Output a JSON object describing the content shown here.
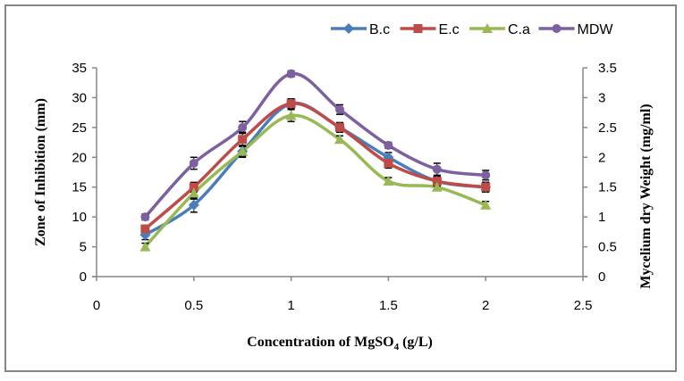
{
  "chart_data": {
    "type": "line",
    "title": "",
    "xlabel": "Concentration of MgSO",
    "xlabel_subscript": "4",
    "xlabel_suffix": " (g/L)",
    "ylabel": "Zone of Inhibition (mm)",
    "y2label": "Mycelium dry Weight (mg/ml)",
    "xlim": [
      0,
      2.5
    ],
    "ylim": [
      0,
      35
    ],
    "y2lim": [
      0,
      3.5
    ],
    "x_ticks": [
      "0",
      "0.5",
      "1",
      "1.5",
      "2",
      "2.5"
    ],
    "y_ticks": [
      "0",
      "5",
      "10",
      "15",
      "20",
      "25",
      "30",
      "35"
    ],
    "y2_ticks": [
      "0",
      "0.5",
      "1",
      "1.5",
      "2",
      "2.5",
      "3",
      "3.5"
    ],
    "grid": false,
    "legend_position": "top-right",
    "smooth": true,
    "x": [
      0.25,
      0.5,
      0.75,
      1.0,
      1.25,
      1.5,
      1.75,
      2.0
    ],
    "series": [
      {
        "name": "B.c",
        "axis": "left",
        "marker": "diamond",
        "color": "#4A7EBB",
        "values": [
          7,
          12,
          21,
          29,
          25,
          20,
          16,
          15
        ],
        "errors": [
          0.8,
          1.2,
          1.0,
          0.8,
          0.8,
          0.8,
          0.8,
          0.8
        ]
      },
      {
        "name": "E.c",
        "axis": "left",
        "marker": "square",
        "color": "#BE4B48",
        "values": [
          8,
          15,
          23,
          29,
          25,
          19,
          16,
          15
        ],
        "errors": [
          0.6,
          0.8,
          1.2,
          0.8,
          0.8,
          0.8,
          0.8,
          0.8
        ]
      },
      {
        "name": "C.a",
        "axis": "left",
        "marker": "triangle",
        "color": "#98B954",
        "values": [
          5,
          14,
          21,
          27,
          23,
          16,
          15,
          12
        ],
        "errors": [
          0.6,
          1.0,
          0.8,
          1.0,
          0.6,
          0.6,
          0.6,
          0.6
        ]
      },
      {
        "name": "MDW",
        "axis": "right",
        "marker": "circle",
        "color": "#7D60A0",
        "values": [
          1.0,
          1.9,
          2.5,
          3.4,
          2.8,
          2.2,
          1.8,
          1.7
        ],
        "errors": [
          0.05,
          0.1,
          0.1,
          0.05,
          0.08,
          0.05,
          0.1,
          0.08
        ]
      }
    ]
  }
}
